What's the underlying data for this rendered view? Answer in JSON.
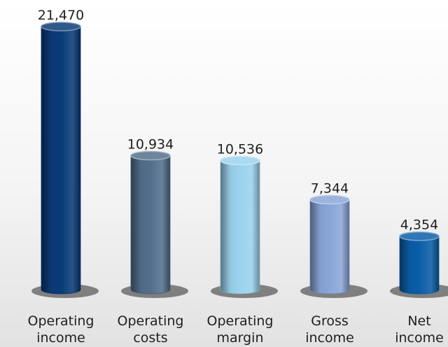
{
  "chart_data": {
    "type": "bar",
    "categories": [
      [
        "Operating",
        "income"
      ],
      [
        "Operating",
        "costs"
      ],
      [
        "Operating",
        "margin"
      ],
      [
        "Gross",
        "income"
      ],
      [
        "Net",
        "income"
      ]
    ],
    "values": [
      21470,
      10934,
      10536,
      7344,
      4354
    ],
    "value_labels": [
      "21,470",
      "10,934",
      "10,536",
      "7,344",
      "4,354"
    ],
    "bar_colors": [
      "#0a3b78",
      "#536f8c",
      "#9bd2ee",
      "#8aa6d8",
      "#0a5ea8"
    ],
    "bar_shape": "cylinder",
    "grid": false,
    "legend": "none"
  }
}
